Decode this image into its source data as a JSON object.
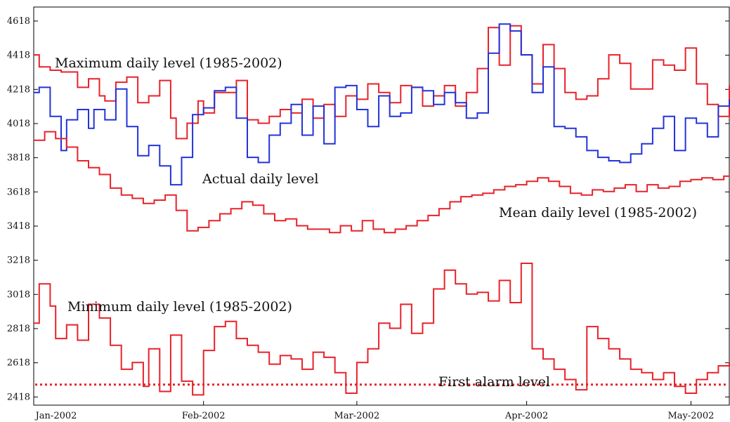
{
  "chart_data": {
    "type": "line",
    "title": "",
    "xlabel": "",
    "ylabel": "",
    "x_ticks": [
      "Jan-2002",
      "Feb-2002",
      "Mar-2002",
      "Apr-2002",
      "May-2002"
    ],
    "y_ticks": [
      2418,
      2618,
      2818,
      3018,
      3218,
      3418,
      3618,
      3818,
      4018,
      4218,
      4418,
      4618
    ],
    "xlim": [
      "2002-01-01",
      "2002-05-08"
    ],
    "ylim": [
      2370,
      4700
    ],
    "grid": false,
    "step": true,
    "colors": {
      "max": "#e8222a",
      "actual": "#2333d8",
      "mean": "#e8222a",
      "min": "#e8222a",
      "alarm": "#e8222a"
    },
    "annotations": {
      "max": "Maximum daily level (1985-2002)",
      "actual": "Actual daily level",
      "mean": "Mean daily level (1985-2002)",
      "min": "Minimum daily level (1985-2002)",
      "alarm": "First alarm level"
    },
    "alarm_level": 2490,
    "series": [
      {
        "key": "max",
        "x": [
          "2002-01-01",
          "2002-01-02",
          "2002-01-04",
          "2002-01-06",
          "2002-01-09",
          "2002-01-11",
          "2002-01-13",
          "2002-01-14",
          "2002-01-16",
          "2002-01-18",
          "2002-01-20",
          "2002-01-22",
          "2002-01-24",
          "2002-01-26",
          "2002-01-27",
          "2002-01-29",
          "2002-01-31",
          "2002-02-01",
          "2002-02-03",
          "2002-02-05",
          "2002-02-07",
          "2002-02-09",
          "2002-02-11",
          "2002-02-13",
          "2002-02-15",
          "2002-02-17",
          "2002-02-19",
          "2002-02-21",
          "2002-02-23",
          "2002-02-25",
          "2002-02-27",
          "2002-03-01",
          "2002-03-03",
          "2002-03-05",
          "2002-03-07",
          "2002-03-09",
          "2002-03-11",
          "2002-03-13",
          "2002-03-15",
          "2002-03-17",
          "2002-03-19",
          "2002-03-21",
          "2002-03-23",
          "2002-03-25",
          "2002-03-27",
          "2002-03-29",
          "2002-03-31",
          "2002-04-02",
          "2002-04-04",
          "2002-04-06",
          "2002-04-08",
          "2002-04-10",
          "2002-04-12",
          "2002-04-14",
          "2002-04-16",
          "2002-04-18",
          "2002-04-20",
          "2002-04-22",
          "2002-04-24",
          "2002-04-26",
          "2002-04-28",
          "2002-04-30",
          "2002-05-02",
          "2002-05-04",
          "2002-05-06",
          "2002-05-08"
        ],
        "values": [
          4420,
          4350,
          4330,
          4320,
          4230,
          4280,
          4180,
          4150,
          4260,
          4290,
          4140,
          4180,
          4270,
          4050,
          3930,
          4020,
          4150,
          4080,
          4200,
          4200,
          4270,
          4040,
          4020,
          4060,
          4100,
          4080,
          4160,
          4050,
          4130,
          4060,
          4180,
          4160,
          4250,
          4200,
          4140,
          4240,
          4230,
          4120,
          4180,
          4240,
          4120,
          4200,
          4340,
          4580,
          4360,
          4590,
          4420,
          4250,
          4480,
          4340,
          4200,
          4160,
          4180,
          4280,
          4420,
          4370,
          4220,
          4220,
          4390,
          4360,
          4330,
          4460,
          4250,
          4130,
          4060,
          4240
        ]
      },
      {
        "key": "actual",
        "x": [
          "2002-01-01",
          "2002-01-02",
          "2002-01-04",
          "2002-01-06",
          "2002-01-07",
          "2002-01-09",
          "2002-01-11",
          "2002-01-12",
          "2002-01-14",
          "2002-01-16",
          "2002-01-18",
          "2002-01-20",
          "2002-01-22",
          "2002-01-24",
          "2002-01-26",
          "2002-01-28",
          "2002-01-30",
          "2002-02-01",
          "2002-02-03",
          "2002-02-05",
          "2002-02-07",
          "2002-02-09",
          "2002-02-11",
          "2002-02-13",
          "2002-02-15",
          "2002-02-17",
          "2002-02-19",
          "2002-02-21",
          "2002-02-23",
          "2002-02-25",
          "2002-02-27",
          "2002-03-01",
          "2002-03-03",
          "2002-03-05",
          "2002-03-07",
          "2002-03-09",
          "2002-03-11",
          "2002-03-13",
          "2002-03-15",
          "2002-03-17",
          "2002-03-19",
          "2002-03-21",
          "2002-03-23",
          "2002-03-25",
          "2002-03-27",
          "2002-03-29",
          "2002-03-31",
          "2002-04-02",
          "2002-04-04",
          "2002-04-06",
          "2002-04-08",
          "2002-04-10",
          "2002-04-12",
          "2002-04-14",
          "2002-04-16",
          "2002-04-18",
          "2002-04-20",
          "2002-04-22",
          "2002-04-24",
          "2002-04-26",
          "2002-04-28",
          "2002-04-30",
          "2002-05-02",
          "2002-05-04",
          "2002-05-06",
          "2002-05-08"
        ],
        "values": [
          4200,
          4230,
          4060,
          3860,
          4040,
          4100,
          3990,
          4100,
          4040,
          4220,
          4000,
          3830,
          3890,
          3770,
          3660,
          3820,
          4070,
          4110,
          4210,
          4230,
          4050,
          3820,
          3790,
          3950,
          4020,
          4130,
          3950,
          4120,
          3900,
          4230,
          4240,
          4100,
          4000,
          4180,
          4060,
          4080,
          4230,
          4210,
          4130,
          4200,
          4140,
          4050,
          4080,
          4430,
          4600,
          4560,
          4420,
          4200,
          4350,
          4000,
          3990,
          3940,
          3860,
          3820,
          3800,
          3790,
          3840,
          3900,
          3990,
          4060,
          3860,
          4050,
          4020,
          3940,
          4120,
          4160
        ]
      },
      {
        "key": "mean",
        "x": [
          "2002-01-01",
          "2002-01-03",
          "2002-01-05",
          "2002-01-07",
          "2002-01-09",
          "2002-01-11",
          "2002-01-13",
          "2002-01-15",
          "2002-01-17",
          "2002-01-19",
          "2002-01-21",
          "2002-01-23",
          "2002-01-25",
          "2002-01-27",
          "2002-01-29",
          "2002-01-31",
          "2002-02-02",
          "2002-02-04",
          "2002-02-06",
          "2002-02-08",
          "2002-02-10",
          "2002-02-12",
          "2002-02-14",
          "2002-02-16",
          "2002-02-18",
          "2002-02-20",
          "2002-02-22",
          "2002-02-24",
          "2002-02-26",
          "2002-02-28",
          "2002-03-02",
          "2002-03-04",
          "2002-03-06",
          "2002-03-08",
          "2002-03-10",
          "2002-03-12",
          "2002-03-14",
          "2002-03-16",
          "2002-03-18",
          "2002-03-20",
          "2002-03-22",
          "2002-03-24",
          "2002-03-26",
          "2002-03-28",
          "2002-03-30",
          "2002-04-01",
          "2002-04-03",
          "2002-04-05",
          "2002-04-07",
          "2002-04-09",
          "2002-04-11",
          "2002-04-13",
          "2002-04-15",
          "2002-04-17",
          "2002-04-19",
          "2002-04-21",
          "2002-04-23",
          "2002-04-25",
          "2002-04-27",
          "2002-04-29",
          "2002-05-01",
          "2002-05-03",
          "2002-05-05",
          "2002-05-07"
        ],
        "values": [
          3920,
          3970,
          3930,
          3880,
          3800,
          3760,
          3720,
          3640,
          3600,
          3580,
          3550,
          3570,
          3600,
          3510,
          3390,
          3410,
          3450,
          3490,
          3520,
          3560,
          3540,
          3490,
          3450,
          3460,
          3420,
          3400,
          3400,
          3380,
          3420,
          3390,
          3450,
          3400,
          3380,
          3400,
          3420,
          3450,
          3480,
          3520,
          3560,
          3590,
          3600,
          3610,
          3630,
          3650,
          3660,
          3680,
          3700,
          3680,
          3650,
          3610,
          3600,
          3630,
          3620,
          3640,
          3660,
          3620,
          3660,
          3640,
          3650,
          3680,
          3690,
          3700,
          3690,
          3710
        ]
      },
      {
        "key": "min",
        "x": [
          "2002-01-01",
          "2002-01-02",
          "2002-01-04",
          "2002-01-05",
          "2002-01-07",
          "2002-01-09",
          "2002-01-11",
          "2002-01-13",
          "2002-01-15",
          "2002-01-17",
          "2002-01-19",
          "2002-01-21",
          "2002-01-22",
          "2002-01-24",
          "2002-01-26",
          "2002-01-28",
          "2002-01-30",
          "2002-02-01",
          "2002-02-03",
          "2002-02-05",
          "2002-02-07",
          "2002-02-09",
          "2002-02-11",
          "2002-02-13",
          "2002-02-15",
          "2002-02-17",
          "2002-02-19",
          "2002-02-21",
          "2002-02-23",
          "2002-02-25",
          "2002-02-27",
          "2002-03-01",
          "2002-03-03",
          "2002-03-05",
          "2002-03-07",
          "2002-03-09",
          "2002-03-11",
          "2002-03-13",
          "2002-03-15",
          "2002-03-17",
          "2002-03-19",
          "2002-03-21",
          "2002-03-23",
          "2002-03-25",
          "2002-03-27",
          "2002-03-29",
          "2002-03-31",
          "2002-04-02",
          "2002-04-04",
          "2002-04-06",
          "2002-04-08",
          "2002-04-10",
          "2002-04-12",
          "2002-04-14",
          "2002-04-16",
          "2002-04-18",
          "2002-04-20",
          "2002-04-22",
          "2002-04-24",
          "2002-04-26",
          "2002-04-28",
          "2002-04-30",
          "2002-05-02",
          "2002-05-04",
          "2002-05-06",
          "2002-05-08"
        ],
        "values": [
          2850,
          3080,
          2950,
          2760,
          2840,
          2750,
          2960,
          2880,
          2720,
          2580,
          2620,
          2480,
          2700,
          2450,
          2780,
          2510,
          2430,
          2690,
          2830,
          2860,
          2760,
          2720,
          2680,
          2610,
          2660,
          2640,
          2580,
          2680,
          2650,
          2560,
          2440,
          2620,
          2700,
          2850,
          2820,
          2960,
          2790,
          2850,
          3050,
          3160,
          3080,
          3020,
          3030,
          2980,
          3100,
          2970,
          3200,
          2700,
          2640,
          2580,
          2520,
          2460,
          2830,
          2760,
          2700,
          2640,
          2580,
          2560,
          2520,
          2560,
          2480,
          2440,
          2520,
          2560,
          2600,
          2620
        ]
      }
    ]
  }
}
